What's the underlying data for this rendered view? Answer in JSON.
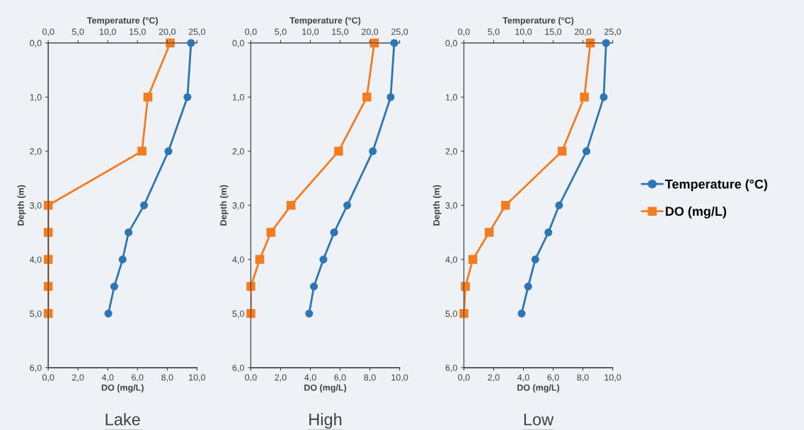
{
  "chart_data": [
    {
      "type": "line",
      "title": "Lake",
      "xlabel": "DO (mg/L)",
      "x2label": "Temperature (°C)",
      "ylabel": "Depth (m)",
      "legend": false,
      "grid": false,
      "xlim": [
        0,
        10
      ],
      "xticks": [
        {
          "value": 0,
          "label": "0,0"
        },
        {
          "value": 2,
          "label": "2,0"
        },
        {
          "value": 4,
          "label": "4,0"
        },
        {
          "value": 6,
          "label": "6,0"
        },
        {
          "value": 8,
          "label": "8,0"
        },
        {
          "value": 10,
          "label": "10,0"
        }
      ],
      "x2lim": [
        0,
        25
      ],
      "x2ticks": [
        {
          "value": 0,
          "label": "0,0"
        },
        {
          "value": 5,
          "label": "5,0"
        },
        {
          "value": 10,
          "label": "10,0"
        },
        {
          "value": 15,
          "label": "15,0"
        },
        {
          "value": 20,
          "label": "20,0"
        },
        {
          "value": 25,
          "label": "25,0"
        }
      ],
      "ylim": [
        6,
        0
      ],
      "yticks": [
        {
          "value": 0,
          "label": "0,0"
        },
        {
          "value": 1,
          "label": "1,0"
        },
        {
          "value": 2,
          "label": "2,0"
        },
        {
          "value": 3,
          "label": "3,0"
        },
        {
          "value": 4,
          "label": "4,0"
        },
        {
          "value": 5,
          "label": "5,0"
        },
        {
          "value": 6,
          "label": "6,0"
        }
      ],
      "series": [
        {
          "color": "#2e75b6",
          "marker": "circle",
          "axis": "x2",
          "x": [
            24.0,
            23.4,
            20.2,
            16.1,
            13.5,
            12.5,
            11.1,
            10.1
          ],
          "values": [
            0,
            1,
            2,
            3,
            3.5,
            4,
            4.5,
            5
          ]
        },
        {
          "color": "#f47c20",
          "marker": "square",
          "x": [
            8.2,
            6.7,
            6.3,
            0,
            0,
            0,
            0,
            0
          ],
          "values": [
            0,
            1,
            2,
            3,
            3.5,
            4,
            4.5,
            5
          ]
        }
      ]
    },
    {
      "type": "line",
      "title": "High",
      "xlabel": "DO (mg/L)",
      "x2label": "Temperature (°C)",
      "ylabel": "Depth (m)",
      "legend": false,
      "grid": false,
      "xlim": [
        0,
        10
      ],
      "xticks": [
        {
          "value": 0,
          "label": "0,0"
        },
        {
          "value": 2,
          "label": "2,0"
        },
        {
          "value": 4,
          "label": "4,0"
        },
        {
          "value": 6,
          "label": "6,0"
        },
        {
          "value": 8,
          "label": "8,0"
        },
        {
          "value": 10,
          "label": "10,0"
        }
      ],
      "x2lim": [
        0,
        25
      ],
      "x2ticks": [
        {
          "value": 0,
          "label": "0,0"
        },
        {
          "value": 5,
          "label": "5,0"
        },
        {
          "value": 10,
          "label": "10,0"
        },
        {
          "value": 15,
          "label": "15,0"
        },
        {
          "value": 20,
          "label": "20,0"
        },
        {
          "value": 25,
          "label": "25,0"
        }
      ],
      "ylim": [
        6,
        0
      ],
      "yticks": [
        {
          "value": 0,
          "label": "0,0"
        },
        {
          "value": 1,
          "label": "1,0"
        },
        {
          "value": 2,
          "label": "2,0"
        },
        {
          "value": 3,
          "label": "3,0"
        },
        {
          "value": 4,
          "label": "4,0"
        },
        {
          "value": 5,
          "label": "5,0"
        },
        {
          "value": 6,
          "label": "6,0"
        }
      ],
      "series": [
        {
          "color": "#2e75b6",
          "marker": "circle",
          "axis": "x2",
          "x": [
            24.1,
            23.5,
            20.5,
            16.2,
            14.0,
            12.2,
            10.6,
            9.8
          ],
          "values": [
            0,
            1,
            2,
            3,
            3.5,
            4,
            4.5,
            5
          ]
        },
        {
          "color": "#f47c20",
          "marker": "square",
          "x": [
            8.3,
            7.8,
            5.9,
            2.7,
            1.35,
            0.6,
            0,
            0
          ],
          "values": [
            0,
            1,
            2,
            3,
            3.5,
            4,
            4.5,
            5
          ]
        }
      ]
    },
    {
      "type": "line",
      "title": "Low",
      "xlabel": "DO (mg/L)",
      "x2label": "Temperature (°C)",
      "ylabel": "Depth (m)",
      "legend": "right",
      "grid": false,
      "xlim": [
        0,
        10
      ],
      "xticks": [
        {
          "value": 0,
          "label": "0,0"
        },
        {
          "value": 2,
          "label": "2,0"
        },
        {
          "value": 4,
          "label": "4,0"
        },
        {
          "value": 6,
          "label": "6,0"
        },
        {
          "value": 8,
          "label": "8,0"
        },
        {
          "value": 10,
          "label": "10,0"
        }
      ],
      "x2lim": [
        0,
        25
      ],
      "x2ticks": [
        {
          "value": 0,
          "label": "0,0"
        },
        {
          "value": 5,
          "label": "5,0"
        },
        {
          "value": 10,
          "label": "10,0"
        },
        {
          "value": 15,
          "label": "15,0"
        },
        {
          "value": 20,
          "label": "20,0"
        },
        {
          "value": 25,
          "label": "25,0"
        }
      ],
      "ylim": [
        6,
        0
      ],
      "yticks": [
        {
          "value": 0,
          "label": "0,0"
        },
        {
          "value": 1,
          "label": "1,0"
        },
        {
          "value": 2,
          "label": "2,0"
        },
        {
          "value": 3,
          "label": "3,0"
        },
        {
          "value": 4,
          "label": "4,0"
        },
        {
          "value": 5,
          "label": "5,0"
        },
        {
          "value": 6,
          "label": "6,0"
        }
      ],
      "series": [
        {
          "name": "Temperature (°C)",
          "color": "#2e75b6",
          "marker": "circle",
          "axis": "x2",
          "x": [
            23.9,
            23.5,
            20.6,
            16.0,
            14.2,
            12.0,
            10.8,
            9.7
          ],
          "values": [
            0,
            1,
            2,
            3,
            3.5,
            4,
            4.5,
            5
          ]
        },
        {
          "name": "DO (mg/L)",
          "color": "#f47c20",
          "marker": "square",
          "x": [
            8.5,
            8.1,
            6.6,
            2.8,
            1.7,
            0.6,
            0.1,
            0.0
          ],
          "values": [
            0,
            1,
            2,
            3,
            3.5,
            4,
            4.5,
            5
          ]
        }
      ]
    }
  ]
}
